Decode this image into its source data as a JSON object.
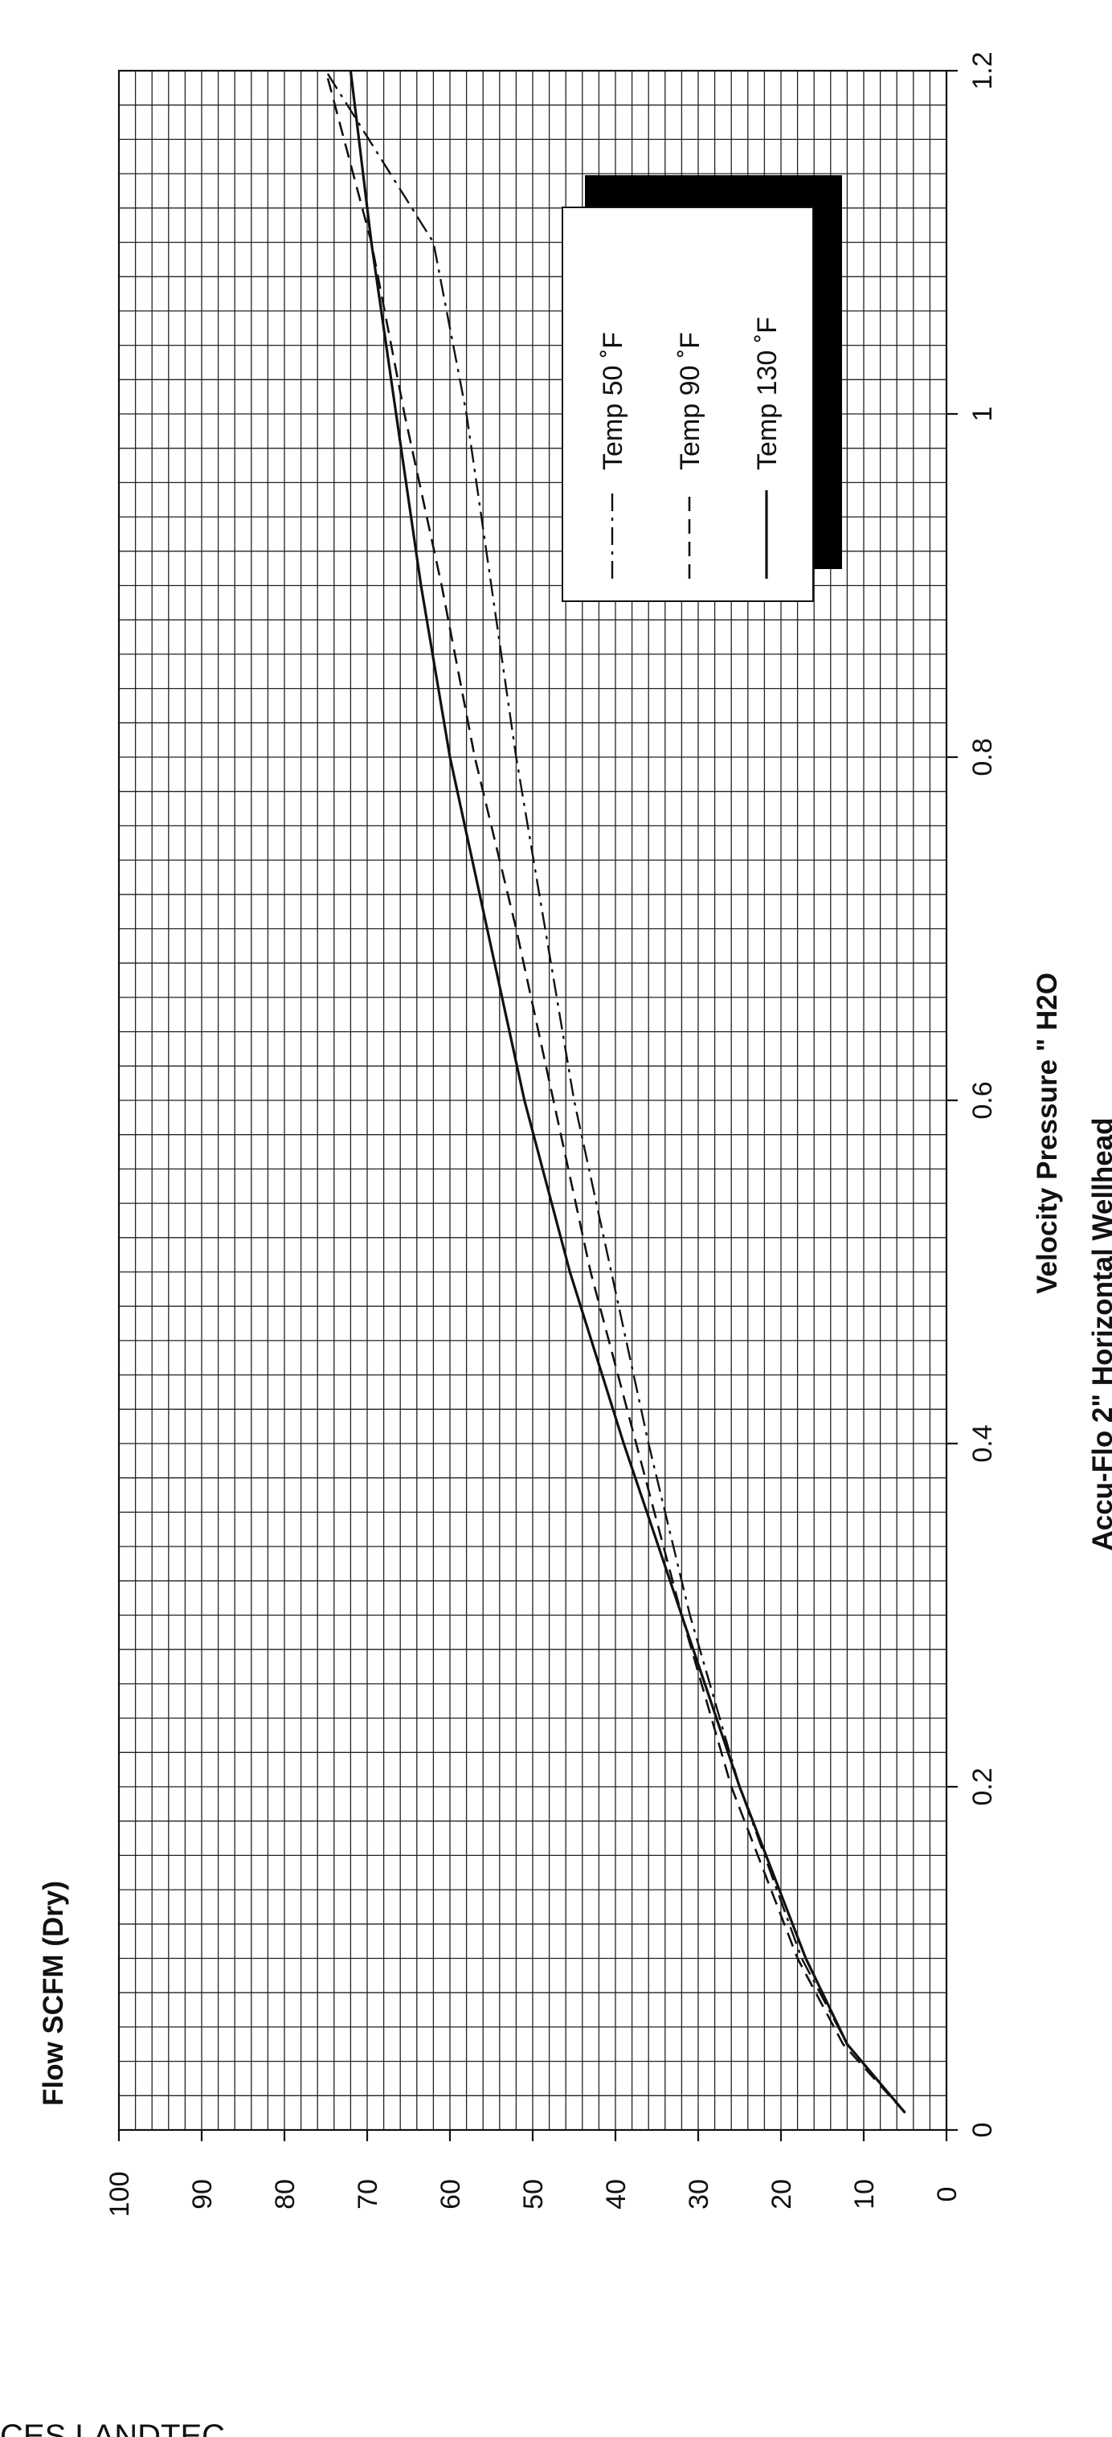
{
  "title": "Accu-Flo 2\" Horizontal Wellhead",
  "footer": "CES LANDTEC",
  "chart_data": {
    "type": "line",
    "title": "Accu-Flo 2\" Horizontal Wellhead",
    "xlabel": "Velocity Pressure \" H2O",
    "ylabel": "Flow SCFM (Dry)",
    "xlim": [
      0,
      1.2
    ],
    "ylim": [
      0,
      100
    ],
    "xticks": [
      "0",
      "0.2",
      "0.4",
      "0.6",
      "0.8",
      "1",
      "1.2"
    ],
    "yticks": [
      "0",
      "10",
      "20",
      "30",
      "40",
      "50",
      "60",
      "70",
      "80",
      "90",
      "100"
    ],
    "grid": true,
    "legend_position": "top-right",
    "series": [
      {
        "name": "Temp 50 ˚F",
        "style": "dash-dot",
        "color": "#111111",
        "x": [
          0.01,
          0.05,
          0.1,
          0.2,
          0.3,
          0.4,
          0.5,
          0.6,
          0.7,
          0.8,
          0.9,
          1.0,
          1.1,
          1.2
        ],
        "y": [
          5,
          12,
          17.5,
          25,
          31,
          36,
          40.5,
          45,
          48.5,
          52,
          55,
          58,
          62,
          75
        ]
      },
      {
        "name": "Temp 90 ˚F",
        "style": "dashed",
        "color": "#111111",
        "x": [
          0.01,
          0.05,
          0.1,
          0.2,
          0.3,
          0.4,
          0.5,
          0.6,
          0.7,
          0.8,
          0.9,
          1.0,
          1.1,
          1.2
        ],
        "y": [
          5,
          12.5,
          18,
          26,
          32,
          37.5,
          43,
          47.5,
          52,
          57,
          61,
          65.5,
          69.5,
          75
        ]
      },
      {
        "name": "Temp 130 ˚F",
        "style": "solid",
        "color": "#111111",
        "x": [
          0.01,
          0.05,
          0.1,
          0.2,
          0.3,
          0.4,
          0.5,
          0.6,
          0.7,
          0.8,
          0.9,
          1.0,
          1.1,
          1.2
        ],
        "y": [
          5,
          12,
          17,
          25,
          32,
          39,
          45.5,
          51,
          55.5,
          60,
          63.5,
          66.5,
          69.5,
          72
        ]
      }
    ]
  }
}
